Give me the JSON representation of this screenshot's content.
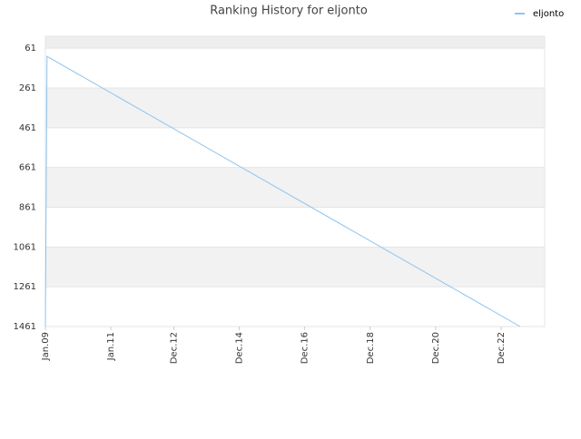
{
  "chart_data": {
    "type": "line",
    "title": "Ranking History for eljonto",
    "x": [
      2009.0,
      2009.05,
      2023.5
    ],
    "series": [
      {
        "name": "eljonto",
        "color": "#8ec4ee",
        "values": [
          1461,
          102,
          1461
        ]
      }
    ],
    "xlim": [
      2009.0,
      2024.25
    ],
    "xticks": [
      {
        "value": 2009.0,
        "label": "Jan.09"
      },
      {
        "value": 2011.0,
        "label": "Jan.11"
      },
      {
        "value": 2012.92,
        "label": "Dec.12"
      },
      {
        "value": 2014.92,
        "label": "Dec.14"
      },
      {
        "value": 2016.92,
        "label": "Dec.16"
      },
      {
        "value": 2018.92,
        "label": "Dec.18"
      },
      {
        "value": 2020.92,
        "label": "Dec.20"
      },
      {
        "value": 2022.92,
        "label": "Dec.22"
      }
    ],
    "ylim": [
      1,
      1461
    ],
    "y_inverted": true,
    "yticks": [
      61,
      261,
      461,
      661,
      861,
      1061,
      1261,
      1461
    ],
    "grid": true,
    "legend": "top-right"
  }
}
